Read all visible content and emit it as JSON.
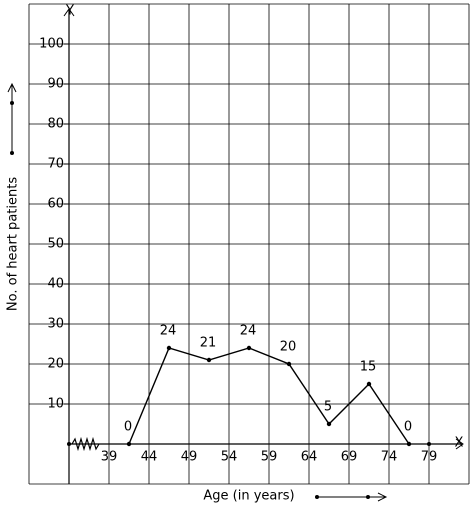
{
  "chart_data": {
    "type": "line",
    "x_label": "Age (in years)",
    "y_label": "No. of heart patients",
    "x_axis_name": "X",
    "y_axis_name": "Y",
    "x": [
      41.5,
      46.5,
      51.5,
      56.5,
      61.5,
      66.5,
      71.5,
      76.5
    ],
    "series": [
      {
        "color": "#000000",
        "values": [
          0,
          24,
          21,
          24,
          20,
          5,
          15,
          0
        ]
      }
    ],
    "xlim": [
      34,
      84
    ],
    "xticks": [
      39,
      44,
      49,
      54,
      59,
      64,
      69,
      74,
      79
    ],
    "ylim": [
      -10,
      110
    ],
    "yticks": [
      10,
      20,
      30,
      40,
      50,
      60,
      70,
      80,
      90,
      100
    ],
    "grid": true
  }
}
